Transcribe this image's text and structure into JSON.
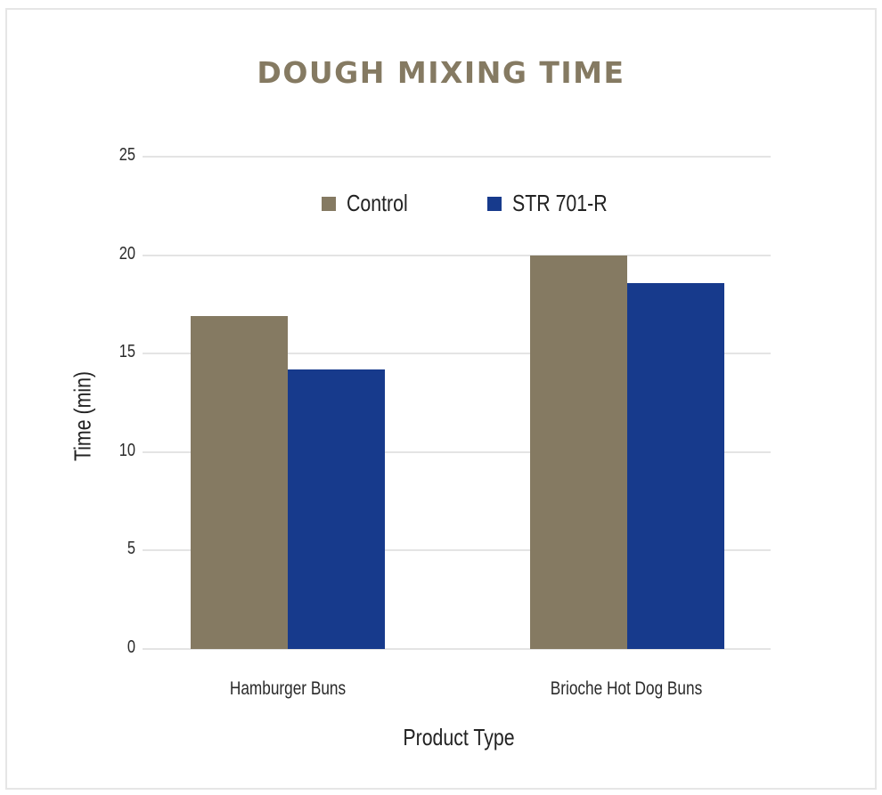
{
  "chart_data": {
    "type": "bar",
    "title": "DOUGH MIXING TIME",
    "xlabel": "Product Type",
    "ylabel": "Time (min)",
    "categories": [
      "Hamburger Buns",
      "Brioche Hot Dog Buns"
    ],
    "series": [
      {
        "name": "Control",
        "color": "#857a62",
        "values": [
          16.9,
          20.0
        ]
      },
      {
        "name": "STR 701-R",
        "color": "#173a8c",
        "values": [
          14.2,
          18.6
        ]
      }
    ],
    "ylim": [
      0,
      25
    ],
    "yticks": [
      "0",
      "5",
      "10",
      "15",
      "20",
      "25"
    ],
    "grid": true,
    "legend_position": "top-center"
  }
}
